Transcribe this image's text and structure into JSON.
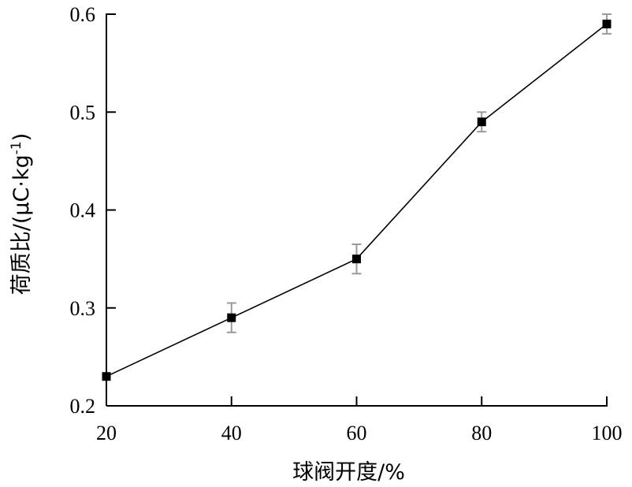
{
  "chart_data": {
    "type": "line",
    "xlabel": "球阀开度/%",
    "ylabel": "荷质比/(μC·kg",
    "ylabel_sup": "-1",
    "ylabel_close": ")",
    "xlim": [
      20,
      100
    ],
    "ylim": [
      0.2,
      0.6
    ],
    "x_ticks": [
      "20",
      "40",
      "60",
      "80",
      "100"
    ],
    "y_ticks": [
      "0.2",
      "0.3",
      "0.4",
      "0.5",
      "0.6"
    ],
    "grid": false,
    "legend": "none",
    "marker": "square",
    "series": [
      {
        "x": [
          20,
          40,
          60,
          80,
          100
        ],
        "y": [
          0.23,
          0.29,
          0.35,
          0.49,
          0.59
        ],
        "error": [
          0.0,
          0.015,
          0.015,
          0.01,
          0.01
        ]
      }
    ],
    "colors": {
      "line": "#000000",
      "marker": "#000000",
      "error_bar": "#9a9a9a"
    }
  }
}
